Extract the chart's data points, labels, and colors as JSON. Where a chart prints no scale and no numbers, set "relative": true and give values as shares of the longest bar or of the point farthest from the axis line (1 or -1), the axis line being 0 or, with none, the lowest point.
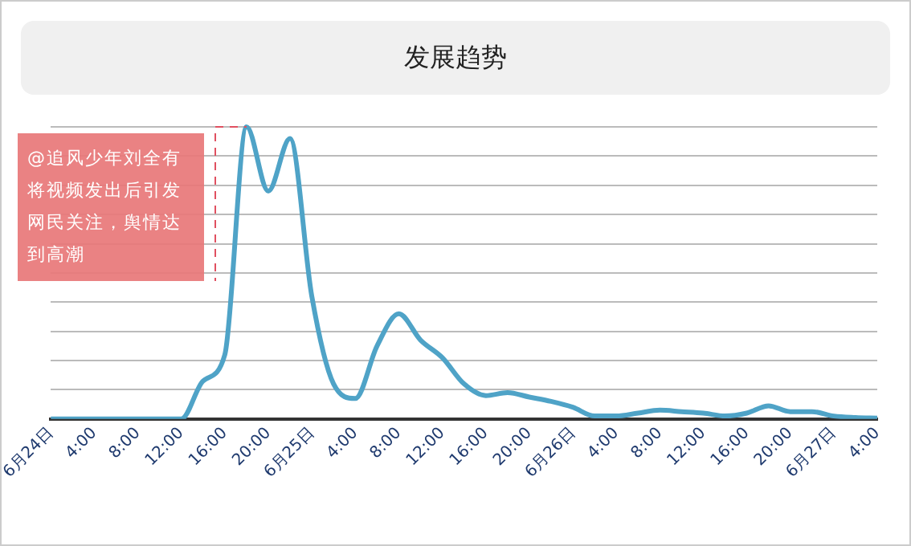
{
  "chart_data": {
    "type": "line",
    "title": "发展趋势",
    "relative": true,
    "grid": "y",
    "legend": false,
    "marker": "none",
    "line_style": "solid",
    "categories": [
      "6月24日",
      null,
      "4:00",
      null,
      "8:00",
      null,
      "12:00",
      null,
      "16:00",
      null,
      "20:00",
      null,
      "6月25日",
      null,
      "4:00",
      null,
      "8:00",
      null,
      "12:00",
      null,
      "16:00",
      null,
      "20:00",
      null,
      "6月26日",
      null,
      "4:00",
      null,
      "8:00",
      null,
      "12:00",
      null,
      "16:00",
      null,
      "20:00",
      null,
      "6月27日",
      null,
      "4:00"
    ],
    "series": [
      {
        "color": "#4fa3c7",
        "values": [
          0,
          0,
          0,
          0,
          0,
          0,
          0,
          0.13,
          0.22,
          1.0,
          0.78,
          0.96,
          0.42,
          0.12,
          0.07,
          0.25,
          0.36,
          0.27,
          0.21,
          0.12,
          0.08,
          0.09,
          0.075,
          0.06,
          0.04,
          0.01,
          0.01,
          0.02,
          0.03,
          0.025,
          0.02,
          0.01,
          0.02,
          0.045,
          0.025,
          0.025,
          0.01,
          0.005,
          0.003
        ]
      }
    ],
    "annotations": [
      "@追风少年刘全有将视频发出后引发网民关注，舆情达到高潮"
    ]
  }
}
